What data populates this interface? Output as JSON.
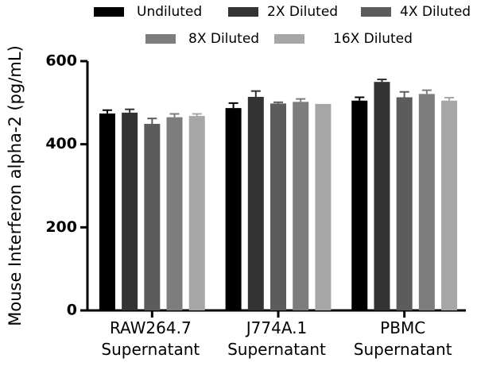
{
  "chart_data": {
    "type": "bar",
    "title": "",
    "xlabel": "",
    "ylabel": "Mouse Interferon alpha-2 (pg/mL)",
    "ylim": [
      0,
      600
    ],
    "yticks": [
      0,
      200,
      400,
      600
    ],
    "categories": [
      [
        "RAW264.7",
        "Supernatant"
      ],
      [
        "J774A.1",
        "Supernatant"
      ],
      [
        "PBMC",
        "Supernatant"
      ]
    ],
    "legend_position": "top",
    "series": [
      {
        "name": "Undiluted",
        "color": "#000000",
        "values": [
          474,
          487,
          505
        ],
        "errors": [
          8,
          12,
          8
        ]
      },
      {
        "name": "2X Diluted",
        "color": "#333333",
        "values": [
          476,
          514,
          550
        ],
        "errors": [
          8,
          14,
          6
        ]
      },
      {
        "name": "4X Diluted",
        "color": "#5c5c5c",
        "values": [
          449,
          498,
          513
        ],
        "errors": [
          13,
          3,
          13
        ]
      },
      {
        "name": "8X Diluted",
        "color": "#7d7d7d",
        "values": [
          465,
          502,
          521
        ],
        "errors": [
          8,
          7,
          9
        ]
      },
      {
        "name": "16X Diluted",
        "color": "#a6a6a6",
        "values": [
          468,
          497,
          505
        ],
        "errors": [
          5,
          0,
          7
        ]
      }
    ],
    "grid": false
  }
}
